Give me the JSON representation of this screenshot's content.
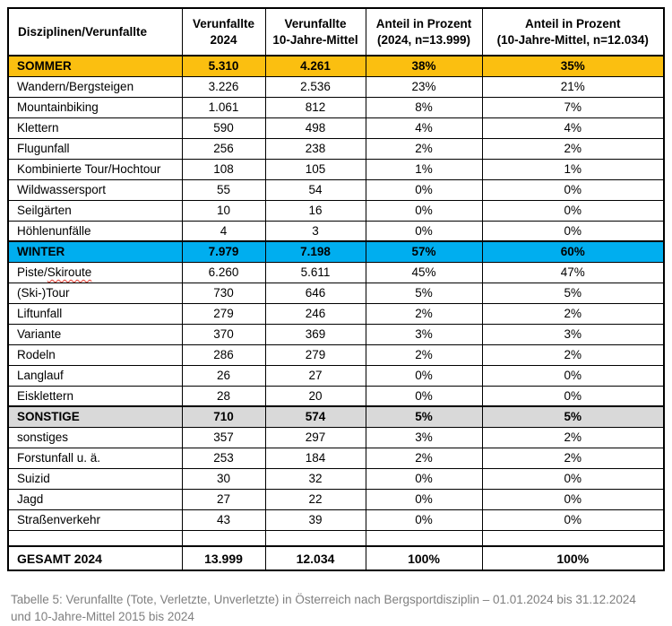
{
  "colors": {
    "summer_row": "#FBBF10",
    "winter_row": "#00AEEF",
    "sonstige_row": "#D9D9D9",
    "border": "#000000",
    "caption_text": "#7F7F7F"
  },
  "table": {
    "columns": [
      "Disziplinen/Verunfallte",
      "Verunfallte\n2024",
      "Verunfallte\n10-Jahre-Mittel",
      "Anteil in Prozent\n(2024, n=13.999)",
      "Anteil in Prozent\n(10-Jahre-Mittel, n=12.034)"
    ],
    "rows": [
      {
        "style": "summer",
        "label": "SOMMER",
        "v2024": "5.310",
        "v10": "4.261",
        "p2024": "38%",
        "p10": "35%"
      },
      {
        "style": "data",
        "label": "Wandern/Bergsteigen",
        "v2024": "3.226",
        "v10": "2.536",
        "p2024": "23%",
        "p10": "21%"
      },
      {
        "style": "data",
        "label": "Mountainbiking",
        "v2024": "1.061",
        "v10": "812",
        "p2024": "8%",
        "p10": "7%"
      },
      {
        "style": "data",
        "label": "Klettern",
        "v2024": "590",
        "v10": "498",
        "p2024": "4%",
        "p10": "4%"
      },
      {
        "style": "data",
        "label": "Flugunfall",
        "v2024": "256",
        "v10": "238",
        "p2024": "2%",
        "p10": "2%"
      },
      {
        "style": "data",
        "label": "Kombinierte Tour/Hochtour",
        "v2024": "108",
        "v10": "105",
        "p2024": "1%",
        "p10": "1%"
      },
      {
        "style": "data",
        "label": "Wildwassersport",
        "v2024": "55",
        "v10": "54",
        "p2024": "0%",
        "p10": "0%"
      },
      {
        "style": "data",
        "label": "Seilgärten",
        "v2024": "10",
        "v10": "16",
        "p2024": "0%",
        "p10": "0%"
      },
      {
        "style": "data",
        "label": "Höhlenunfälle",
        "v2024": "4",
        "v10": "3",
        "p2024": "0%",
        "p10": "0%"
      },
      {
        "style": "winter",
        "label": "WINTER",
        "v2024": "7.979",
        "v10": "7.198",
        "p2024": "57%",
        "p10": "60%"
      },
      {
        "style": "data",
        "label": "Piste/Skiroute",
        "squiggle": "Skiroute",
        "v2024": "6.260",
        "v10": "5.611",
        "p2024": "45%",
        "p10": "47%"
      },
      {
        "style": "data",
        "label": "(Ski-)Tour",
        "v2024": "730",
        "v10": "646",
        "p2024": "5%",
        "p10": "5%"
      },
      {
        "style": "data",
        "label": "Liftunfall",
        "v2024": "279",
        "v10": "246",
        "p2024": "2%",
        "p10": "2%"
      },
      {
        "style": "data",
        "label": "Variante",
        "v2024": "370",
        "v10": "369",
        "p2024": "3%",
        "p10": "3%"
      },
      {
        "style": "data",
        "label": "Rodeln",
        "v2024": "286",
        "v10": "279",
        "p2024": "2%",
        "p10": "2%"
      },
      {
        "style": "data",
        "label": "Langlauf",
        "v2024": "26",
        "v10": "27",
        "p2024": "0%",
        "p10": "0%"
      },
      {
        "style": "data",
        "label": "Eisklettern",
        "v2024": "28",
        "v10": "20",
        "p2024": "0%",
        "p10": "0%"
      },
      {
        "style": "sonstige",
        "label": "SONSTIGE",
        "v2024": "710",
        "v10": "574",
        "p2024": "5%",
        "p10": "5%"
      },
      {
        "style": "data",
        "label": "sonstiges",
        "v2024": "357",
        "v10": "297",
        "p2024": "3%",
        "p10": "2%"
      },
      {
        "style": "data",
        "label": "Forstunfall u. ä.",
        "v2024": "253",
        "v10": "184",
        "p2024": "2%",
        "p10": "2%"
      },
      {
        "style": "data",
        "label": "Suizid",
        "v2024": "30",
        "v10": "32",
        "p2024": "0%",
        "p10": "0%"
      },
      {
        "style": "data",
        "label": "Jagd",
        "v2024": "27",
        "v10": "22",
        "p2024": "0%",
        "p10": "0%"
      },
      {
        "style": "data",
        "label": "Straßenverkehr",
        "v2024": "43",
        "v10": "39",
        "p2024": "0%",
        "p10": "0%"
      },
      {
        "style": "empty",
        "label": "",
        "v2024": "",
        "v10": "",
        "p2024": "",
        "p10": ""
      },
      {
        "style": "total",
        "label": "GESAMT 2024",
        "v2024": "13.999",
        "v10": "12.034",
        "p2024": "100%",
        "p10": "100%"
      }
    ]
  },
  "caption": {
    "lines": [
      "Tabelle 5: Verunfallte (Tote, Verletzte, Unverletzte) in Österreich nach Bergsportdisziplin – 01.01.2024 bis 31.12.2024",
      "und 10-Jahre-Mittel 2015 bis 2024"
    ]
  }
}
